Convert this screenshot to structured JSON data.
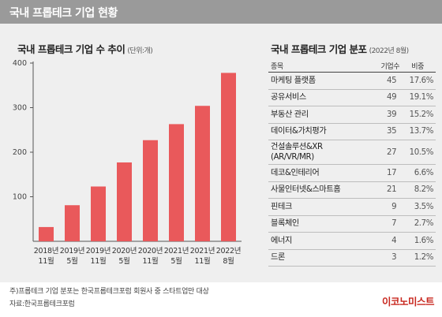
{
  "header": {
    "title": "국내 프롭테크 기업 현황"
  },
  "left_chart": {
    "title": "국내 프롭테크 기업 수 추이",
    "unit": "(단위:개)"
  },
  "chart_data": {
    "type": "bar",
    "title": "국내 프롭테크 기업 수 추이",
    "unit": "(단위:개)",
    "categories": [
      [
        "2018년",
        "11월"
      ],
      [
        "2019년",
        "5월"
      ],
      [
        "2019년",
        "11월"
      ],
      [
        "2020년",
        "5월"
      ],
      [
        "2020년",
        "11월"
      ],
      [
        "2021년",
        "5월"
      ],
      [
        "2021년",
        "11월"
      ],
      [
        "2022년",
        "8월"
      ]
    ],
    "values": [
      32,
      81,
      123,
      177,
      227,
      263,
      304,
      378
    ],
    "ylim": [
      0,
      400
    ],
    "yticks": [
      100,
      200,
      300,
      400
    ],
    "bar_color": "#e9595b",
    "grid": false,
    "xlabel": "",
    "ylabel": ""
  },
  "table": {
    "title": "국내 프롭테크 기업 분포",
    "date": "(2022년 8월)",
    "headers": {
      "name": "종목",
      "count": "기업수",
      "ratio": "비중"
    },
    "rows": [
      {
        "name": "마케팅 플랫폼",
        "count": "45",
        "ratio": "17.6%"
      },
      {
        "name": "공유서비스",
        "count": "49",
        "ratio": "19.1%"
      },
      {
        "name": "부동산 관리",
        "count": "39",
        "ratio": "15.2%"
      },
      {
        "name": "데이터&가치평가",
        "count": "35",
        "ratio": "13.7%"
      },
      {
        "name": "건설솔루션&XR (AR/VR/MR)",
        "count": "27",
        "ratio": "10.5%"
      },
      {
        "name": "데코&인테리어",
        "count": "17",
        "ratio": "6.6%"
      },
      {
        "name": "사물인터넷&스마트홈",
        "count": "21",
        "ratio": "8.2%"
      },
      {
        "name": "핀테크",
        "count": "9",
        "ratio": "3.5%"
      },
      {
        "name": "블록체인",
        "count": "7",
        "ratio": "2.7%"
      },
      {
        "name": "에너지",
        "count": "4",
        "ratio": "1.6%"
      },
      {
        "name": "드론",
        "count": "3",
        "ratio": "1.2%"
      }
    ]
  },
  "footer": {
    "note": "주)프롭테크 기업 분포는 한국프롭테크포럼 회원사 중 스타트업만 대상",
    "source": "자료:한국프롭테크포럼",
    "logo": "이코노미스트"
  }
}
